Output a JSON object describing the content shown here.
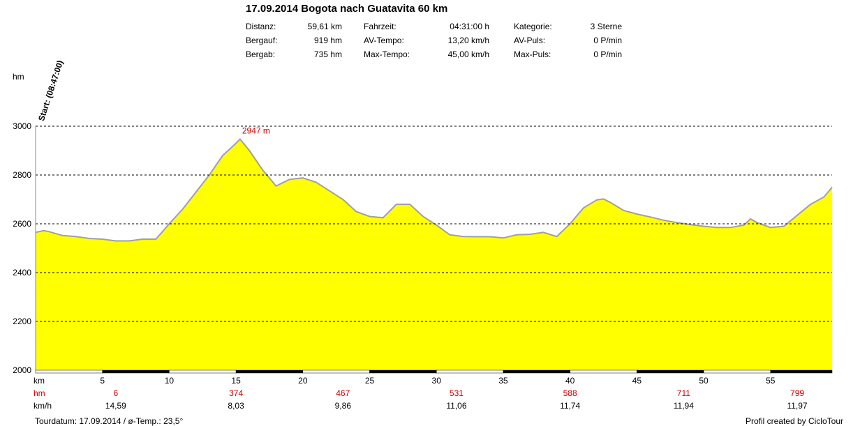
{
  "header": {
    "title": "17.09.2014 Bogota nach Guatavita 60 km",
    "stats": [
      {
        "label": "Distanz:",
        "value": "59,61 km"
      },
      {
        "label": "Bergauf:",
        "value": "919 hm"
      },
      {
        "label": "Bergab:",
        "value": "735 hm"
      },
      {
        "label": "Fahrzeit:",
        "value": "04:31:00 h"
      },
      {
        "label": "AV-Tempo:",
        "value": "13,20 km/h"
      },
      {
        "label": "Max-Tempo:",
        "value": "45,00 km/h"
      },
      {
        "label": "Kategorie:",
        "value": "3 Sterne"
      },
      {
        "label": "AV-Puls:",
        "value": "0 P/min"
      },
      {
        "label": "Max-Puls:",
        "value": "0 P/min"
      }
    ]
  },
  "start_label": "Start: (08:47:00)",
  "footer": {
    "left": "Tourdatum: 17.09.2014  /  ø-Temp.: 23,5°",
    "right": "Profil created by CicloTour"
  },
  "colors": {
    "fill": "#ffff00",
    "line": "#a0a0a0",
    "peak_label": "#cc0000",
    "hm_row": "#cc0000"
  },
  "chart_data": {
    "type": "area",
    "ylabel": "hm",
    "xlabel": "km",
    "xlim": [
      0,
      59.61
    ],
    "ylim": [
      2000,
      3000
    ],
    "yticks": [
      2000,
      2200,
      2400,
      2600,
      2800,
      3000
    ],
    "xticks": [
      5,
      10,
      15,
      20,
      25,
      30,
      35,
      40,
      45,
      50,
      55
    ],
    "grid": "horizontal dashed",
    "peak": {
      "label": "2947 m",
      "x": 15.3,
      "y": 2947
    },
    "x": [
      0,
      0.6,
      1,
      2,
      3,
      4,
      5,
      6,
      7,
      8,
      9,
      10,
      11,
      12,
      13,
      14,
      15,
      15.3,
      16,
      17,
      18,
      19,
      20,
      21,
      22,
      23,
      24,
      25,
      26,
      27,
      28,
      29,
      30,
      31,
      32,
      33,
      34,
      35,
      36,
      37,
      38,
      39,
      40,
      41,
      42,
      42.5,
      43,
      44,
      45,
      46,
      47,
      48,
      49,
      50,
      51,
      52,
      53,
      53.5,
      54,
      55,
      56,
      57,
      58,
      59,
      59.61
    ],
    "y": [
      2565,
      2572,
      2568,
      2552,
      2548,
      2540,
      2537,
      2530,
      2530,
      2537,
      2537,
      2600,
      2660,
      2730,
      2800,
      2880,
      2930,
      2947,
      2900,
      2820,
      2755,
      2782,
      2788,
      2770,
      2735,
      2700,
      2650,
      2630,
      2625,
      2680,
      2680,
      2630,
      2595,
      2555,
      2548,
      2547,
      2547,
      2542,
      2555,
      2557,
      2565,
      2548,
      2600,
      2665,
      2698,
      2702,
      2688,
      2655,
      2640,
      2628,
      2615,
      2605,
      2597,
      2590,
      2585,
      2585,
      2595,
      2620,
      2605,
      2585,
      2590,
      2635,
      2680,
      2710,
      2750
    ],
    "hm_values": [
      {
        "km": 6,
        "value": "6"
      },
      {
        "km": 15,
        "value": "374"
      },
      {
        "km": 23,
        "value": "467"
      },
      {
        "km": 31.5,
        "value": "531"
      },
      {
        "km": 40,
        "value": "588"
      },
      {
        "km": 48.5,
        "value": "711"
      },
      {
        "km": 57,
        "value": "799"
      }
    ],
    "speed_values": [
      {
        "km": 6,
        "value": "14,59"
      },
      {
        "km": 15,
        "value": "8,03"
      },
      {
        "km": 23,
        "value": "9,86"
      },
      {
        "km": 31.5,
        "value": "11,06"
      },
      {
        "km": 40,
        "value": "11,74"
      },
      {
        "km": 48.5,
        "value": "11,94"
      },
      {
        "km": 57,
        "value": "11,97"
      }
    ],
    "row_labels": {
      "km": "km",
      "hm": "hm",
      "speed": "km/h"
    }
  }
}
